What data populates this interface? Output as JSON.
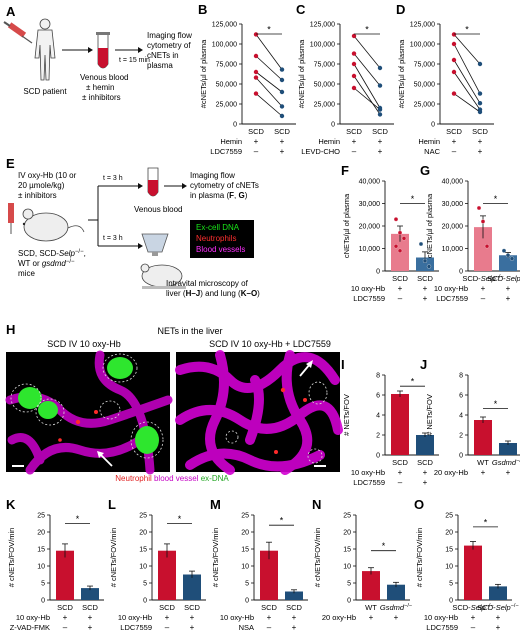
{
  "colors": {
    "red": "#c8102e",
    "blue": "#1f4e79",
    "pink": "#e87b8d",
    "lightblue": "#3a6f9f",
    "magenta": "#e000e0",
    "green": "#19e619"
  },
  "panelA": {
    "label": "A",
    "patient": "SCD patient",
    "tube": "Venous blood\n± hemin\n± inhibitors",
    "time": "t = 15 min",
    "imaging": "Imaging flow\ncytometry of\ncNETs in\nplasma"
  },
  "panelB": {
    "label": "B",
    "ylabel": "#cNETs/µl of plasma",
    "yticks": [
      "0",
      "25,000",
      "50,000",
      "75,000",
      "100,000",
      "125,000"
    ],
    "categories": [
      "SCD",
      "SCD"
    ],
    "rows": [
      {
        "name": "Hemin",
        "vals": [
          "+",
          "+"
        ]
      },
      {
        "name": "LDC7559",
        "vals": [
          "–",
          "+"
        ]
      }
    ],
    "sig": "*"
  },
  "panelC": {
    "label": "C",
    "ylabel": "#cNETs/µl of plasma",
    "yticks": [
      "0",
      "25,000",
      "50,000",
      "75,000",
      "100,000",
      "125,000"
    ],
    "categories": [
      "SCD",
      "SCD"
    ],
    "rows": [
      {
        "name": "Hemin",
        "vals": [
          "+",
          "+"
        ]
      },
      {
        "name": "LEVD-CHO",
        "vals": [
          "–",
          "+"
        ]
      }
    ],
    "sig": "*"
  },
  "panelD": {
    "label": "D",
    "ylabel": "#cNETs/µl of plasma",
    "yticks": [
      "0",
      "25,000",
      "50,000",
      "75,000",
      "100,000",
      "125,000"
    ],
    "categories": [
      "SCD",
      "SCD"
    ],
    "rows": [
      {
        "name": "Hemin",
        "vals": [
          "+",
          "+"
        ]
      },
      {
        "name": "NAC",
        "vals": [
          "–",
          "+"
        ]
      }
    ],
    "sig": "*"
  },
  "panelE": {
    "label": "E",
    "treatment": "IV oxy-Hb (10 or\n20 µmole/kg)\n± inhibitors",
    "mice": "SCD, SCD-Selp−/−,\nWT or gsdmd−/−\nmice",
    "t1": "t = 3 h",
    "t2": "t = 3 h",
    "venous": "Venous blood",
    "imaging": "Imaging flow\ncytometry of cNETs\nin plasma (F, G)",
    "legend": [
      "Ex-cell DNA",
      "Neutrophils",
      "Blood vessels"
    ],
    "intravital": "Intravital microscopy of\nliver (H–J) and lung (K–O)"
  },
  "panelF": {
    "label": "F",
    "ylabel": "cNETs/µl of plasma",
    "yticks": [
      "0",
      "10,000",
      "20,000",
      "30,000",
      "40,000"
    ],
    "categories": [
      "SCD",
      "SCD"
    ],
    "rows": [
      {
        "name": "10 oxy-Hb",
        "vals": [
          "+",
          "+"
        ]
      },
      {
        "name": "LDC7559",
        "vals": [
          "–",
          "+"
        ]
      }
    ],
    "sig": "*"
  },
  "panelG": {
    "label": "G",
    "ylabel": "cNETs/µl of plasma",
    "yticks": [
      "0",
      "10,000",
      "20,000",
      "30,000",
      "40,000"
    ],
    "categories": [
      "SCD-Selp−/−",
      "SCD-Selp−/−"
    ],
    "rows": [
      {
        "name": "10 oxy-Hb",
        "vals": [
          "+",
          "+"
        ]
      },
      {
        "name": "LDC7559",
        "vals": [
          "–",
          "+"
        ]
      }
    ],
    "sig": "*"
  },
  "panelH": {
    "label": "H",
    "title": "NETs in the liver",
    "left_title": "SCD IV 10 oxy-Hb",
    "right_title": "SCD IV 10 oxy-Hb + LDC7559",
    "legend_neut": "Neutrophil",
    "legend_bv": "blood vessel",
    "legend_dna": "ex-DNA"
  },
  "panelI": {
    "label": "I",
    "ylabel": "# NETs/FOV",
    "yticks": [
      "0",
      "2",
      "4",
      "6",
      "8"
    ],
    "categories": [
      "SCD",
      "SCD"
    ],
    "rows": [
      {
        "name": "10 oxy-Hb",
        "vals": [
          "+",
          "+"
        ]
      },
      {
        "name": "LDC7559",
        "vals": [
          "–",
          "+"
        ]
      }
    ],
    "sig": "*"
  },
  "panelJ": {
    "label": "J",
    "ylabel": "# NETs/FOV",
    "yticks": [
      "0",
      "2",
      "4",
      "6",
      "8"
    ],
    "categories": [
      "WT",
      "Gsdmd−/−"
    ],
    "rows": [
      {
        "name": "20 oxy-Hb",
        "vals": [
          "+",
          "+"
        ]
      }
    ],
    "sig": "*"
  },
  "panelK": {
    "label": "K",
    "ylabel": "# cNETs/FOV/min",
    "yticks": [
      "0",
      "5",
      "10",
      "15",
      "20",
      "25"
    ],
    "categories": [
      "SCD",
      "SCD"
    ],
    "rows": [
      {
        "name": "10 oxy-Hb",
        "vals": [
          "+",
          "+"
        ]
      },
      {
        "name": "Z-VAD-FMK",
        "vals": [
          "–",
          "+"
        ]
      }
    ],
    "sig": "*"
  },
  "panelL": {
    "label": "L",
    "ylabel": "# cNETs/FOV/min",
    "yticks": [
      "0",
      "5",
      "10",
      "15",
      "20",
      "25"
    ],
    "categories": [
      "SCD",
      "SCD"
    ],
    "rows": [
      {
        "name": "10 oxy-Hb",
        "vals": [
          "+",
          "+"
        ]
      },
      {
        "name": "LDC7559",
        "vals": [
          "–",
          "+"
        ]
      }
    ],
    "sig": "*"
  },
  "panelM": {
    "label": "M",
    "ylabel": "# cNETs/FOV/min",
    "yticks": [
      "0",
      "5",
      "10",
      "15",
      "20",
      "25"
    ],
    "categories": [
      "SCD",
      "SCD"
    ],
    "rows": [
      {
        "name": "10 oxy-Hb",
        "vals": [
          "+",
          "+"
        ]
      },
      {
        "name": "NSA",
        "vals": [
          "–",
          "+"
        ]
      }
    ],
    "sig": "*"
  },
  "panelN": {
    "label": "N",
    "ylabel": "# cNETs/FOV/min",
    "yticks": [
      "0",
      "5",
      "10",
      "15",
      "20",
      "25"
    ],
    "categories": [
      "WT",
      "Gsdmd−/−"
    ],
    "rows": [
      {
        "name": "20 oxy-Hb",
        "vals": [
          "+",
          "+"
        ]
      }
    ],
    "sig": "*"
  },
  "panelO": {
    "label": "O",
    "ylabel": "# cNETs/FOV/min",
    "yticks": [
      "0",
      "5",
      "10",
      "15",
      "20",
      "25"
    ],
    "categories": [
      "SCD-Selp−/−",
      "SCD-Selp−/−"
    ],
    "rows": [
      {
        "name": "10 oxy-Hb",
        "vals": [
          "+",
          "+"
        ]
      },
      {
        "name": "LDC7559",
        "vals": [
          "–",
          "+"
        ]
      }
    ],
    "sig": "*"
  },
  "chart_data": [
    {
      "panel": "B",
      "type": "line",
      "ylim": [
        0,
        125000
      ],
      "pairs": [
        [
          112000,
          68000
        ],
        [
          85000,
          55000
        ],
        [
          65000,
          40000
        ],
        [
          58000,
          22000
        ],
        [
          38000,
          10000
        ]
      ]
    },
    {
      "panel": "C",
      "type": "line",
      "ylim": [
        0,
        125000
      ],
      "pairs": [
        [
          110000,
          70000
        ],
        [
          88000,
          48000
        ],
        [
          75000,
          20000
        ],
        [
          60000,
          12000
        ],
        [
          45000,
          18000
        ]
      ]
    },
    {
      "panel": "D",
      "type": "line",
      "ylim": [
        0,
        125000
      ],
      "pairs": [
        [
          112000,
          75000
        ],
        [
          100000,
          38000
        ],
        [
          80000,
          26000
        ],
        [
          65000,
          18000
        ],
        [
          38000,
          15000
        ]
      ]
    },
    {
      "panel": "F",
      "type": "bar",
      "ylim": [
        0,
        40000
      ],
      "values": [
        16500,
        6000
      ],
      "errors": [
        3500,
        2500
      ],
      "points": [
        [
          23000,
          17000,
          14500,
          11000,
          9000
        ],
        [
          12000,
          4500,
          2000
        ]
      ]
    },
    {
      "panel": "G",
      "type": "bar",
      "ylim": [
        0,
        40000
      ],
      "values": [
        19500,
        7000
      ],
      "errors": [
        5000,
        1200
      ],
      "points": [
        [
          28000,
          22000,
          11000
        ],
        [
          9000,
          7000,
          5500
        ]
      ]
    },
    {
      "panel": "I",
      "type": "bar",
      "ylim": [
        0,
        8
      ],
      "values": [
        6.1,
        2.0
      ],
      "errors": [
        0.3,
        0.2
      ]
    },
    {
      "panel": "J",
      "type": "bar",
      "ylim": [
        0,
        8
      ],
      "values": [
        3.5,
        1.2
      ],
      "errors": [
        0.3,
        0.2
      ]
    },
    {
      "panel": "K",
      "type": "bar",
      "ylim": [
        0,
        25
      ],
      "values": [
        14.5,
        3.5
      ],
      "errors": [
        2.0,
        0.6
      ]
    },
    {
      "panel": "L",
      "type": "bar",
      "ylim": [
        0,
        25
      ],
      "values": [
        14.5,
        7.5
      ],
      "errors": [
        2.0,
        1.0
      ]
    },
    {
      "panel": "M",
      "type": "bar",
      "ylim": [
        0,
        25
      ],
      "values": [
        14.5,
        2.5
      ],
      "errors": [
        2.5,
        0.5
      ]
    },
    {
      "panel": "N",
      "type": "bar",
      "ylim": [
        0,
        25
      ],
      "values": [
        8.5,
        4.5
      ],
      "errors": [
        1.0,
        0.7
      ]
    },
    {
      "panel": "O",
      "type": "bar",
      "ylim": [
        0,
        25
      ],
      "values": [
        16.0,
        4.0
      ],
      "errors": [
        1.2,
        0.6
      ]
    }
  ]
}
